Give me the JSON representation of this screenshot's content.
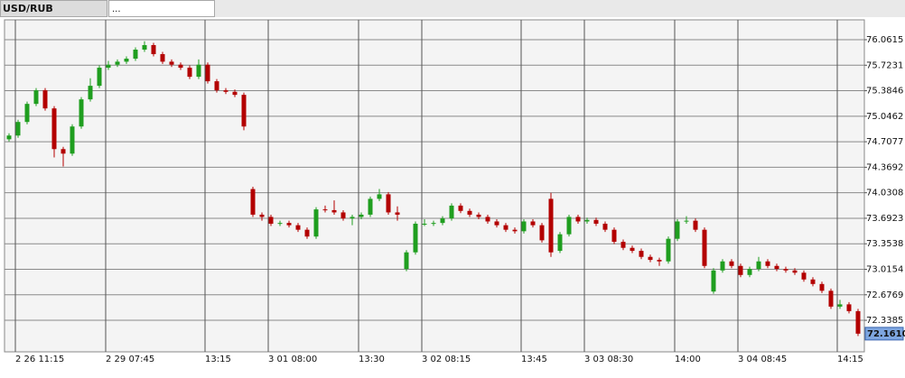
{
  "chart_data": {
    "type": "candlestick",
    "title": "USD/RUB",
    "tab_more": "...",
    "categories": [
      null,
      "2 26 11:15",
      null,
      null,
      null,
      null,
      null,
      null,
      null,
      null,
      null,
      "2 29 07:45",
      null,
      null,
      null,
      null,
      null,
      null,
      null,
      null,
      null,
      null,
      "13:15",
      null,
      null,
      null,
      null,
      null,
      null,
      "3 01 08:00",
      null,
      null,
      null,
      null,
      null,
      null,
      null,
      null,
      null,
      "13:30",
      null,
      null,
      null,
      null,
      null,
      null,
      "3 02 08:15",
      null,
      null,
      null,
      null,
      null,
      null,
      null,
      null,
      null,
      null,
      "13:45",
      null,
      null,
      null,
      null,
      null,
      null,
      "3 03 08:30",
      null,
      null,
      null,
      null,
      null,
      null,
      null,
      null,
      null,
      "14:00",
      null,
      null,
      null,
      null,
      null,
      null,
      "3 04 08:45",
      null,
      null,
      null,
      null,
      null,
      null,
      null,
      null,
      null,
      null,
      "14:15",
      null,
      null
    ],
    "open": [
      74.74,
      74.79,
      74.97,
      75.21,
      75.39,
      75.15,
      74.61,
      74.55,
      74.91,
      75.27,
      75.45,
      75.69,
      75.73,
      75.77,
      75.81,
      75.93,
      75.99,
      75.87,
      75.77,
      75.73,
      75.69,
      75.57,
      75.73,
      75.51,
      75.39,
      75.37,
      75.33,
      74.08,
      73.74,
      73.71,
      73.62,
      73.63,
      73.6,
      73.54,
      73.45,
      73.81,
      73.8,
      73.77,
      73.69,
      73.71,
      73.74,
      73.95,
      74.01,
      73.77,
      73.02,
      73.24,
      73.62,
      73.62,
      73.63,
      73.69,
      73.86,
      73.79,
      73.74,
      73.71,
      73.65,
      73.6,
      73.54,
      73.52,
      73.65,
      73.6,
      73.95,
      73.26,
      73.48,
      73.71,
      73.65,
      73.67,
      73.62,
      73.54,
      73.38,
      73.3,
      73.26,
      73.18,
      73.14,
      73.12,
      73.42,
      73.65,
      73.66,
      73.54,
      72.72,
      73.0,
      73.12,
      73.06,
      72.94,
      73.02,
      73.12,
      73.06,
      73.02,
      73.0,
      72.97,
      72.88,
      72.82,
      72.73,
      72.52,
      72.55,
      72.46
    ],
    "high": [
      74.82,
      75.0,
      75.24,
      75.42,
      75.42,
      75.18,
      74.64,
      74.94,
      75.3,
      75.55,
      75.72,
      75.78,
      75.8,
      75.84,
      75.96,
      76.04,
      76.02,
      75.9,
      75.8,
      75.76,
      75.72,
      75.8,
      75.76,
      75.54,
      75.42,
      75.4,
      75.36,
      74.11,
      73.77,
      73.74,
      73.66,
      73.66,
      73.63,
      73.57,
      73.84,
      73.86,
      73.93,
      73.8,
      73.74,
      73.77,
      73.98,
      74.08,
      74.04,
      73.85,
      73.27,
      73.65,
      73.68,
      73.66,
      73.72,
      73.89,
      73.89,
      73.82,
      73.77,
      73.74,
      73.68,
      73.63,
      73.57,
      73.68,
      73.68,
      73.63,
      74.03,
      73.51,
      73.74,
      73.74,
      73.7,
      73.7,
      73.65,
      73.57,
      73.41,
      73.33,
      73.29,
      73.21,
      73.17,
      73.45,
      73.68,
      73.72,
      73.69,
      73.57,
      73.03,
      73.15,
      73.15,
      73.09,
      73.05,
      73.18,
      73.15,
      73.09,
      73.05,
      73.03,
      73.0,
      72.91,
      72.85,
      72.76,
      72.61,
      72.58,
      72.49
    ],
    "low": [
      74.71,
      74.76,
      74.94,
      75.18,
      75.12,
      74.5,
      74.38,
      74.52,
      74.88,
      75.24,
      75.42,
      75.66,
      75.7,
      75.74,
      75.78,
      75.9,
      75.84,
      75.74,
      75.7,
      75.66,
      75.54,
      75.54,
      75.48,
      75.36,
      75.34,
      75.3,
      74.86,
      73.71,
      73.66,
      73.59,
      73.59,
      73.57,
      73.51,
      73.42,
      73.42,
      73.77,
      73.74,
      73.66,
      73.6,
      73.68,
      73.71,
      73.92,
      73.74,
      73.66,
      72.99,
      73.21,
      73.59,
      73.59,
      73.6,
      73.66,
      73.76,
      73.71,
      73.68,
      73.62,
      73.57,
      73.51,
      73.49,
      73.49,
      73.57,
      73.37,
      73.18,
      73.23,
      73.45,
      73.62,
      73.62,
      73.59,
      73.51,
      73.35,
      73.27,
      73.23,
      73.15,
      73.11,
      73.06,
      73.09,
      73.39,
      73.62,
      73.51,
      73.03,
      72.69,
      72.97,
      73.03,
      72.91,
      72.91,
      72.99,
      73.03,
      72.99,
      72.97,
      72.94,
      72.85,
      72.79,
      72.7,
      72.49,
      72.49,
      72.43,
      72.13
    ],
    "close": [
      74.79,
      74.97,
      75.21,
      75.39,
      75.15,
      74.61,
      74.55,
      74.91,
      75.27,
      75.45,
      75.69,
      75.73,
      75.77,
      75.81,
      75.93,
      75.99,
      75.87,
      75.77,
      75.73,
      75.69,
      75.57,
      75.73,
      75.51,
      75.39,
      75.37,
      75.33,
      74.91,
      73.74,
      73.71,
      73.62,
      73.63,
      73.6,
      73.54,
      73.45,
      73.81,
      73.8,
      73.77,
      73.69,
      73.71,
      73.74,
      73.95,
      74.01,
      73.77,
      73.74,
      73.24,
      73.62,
      73.62,
      73.63,
      73.69,
      73.86,
      73.79,
      73.74,
      73.71,
      73.65,
      73.6,
      73.54,
      73.52,
      73.65,
      73.6,
      73.4,
      73.24,
      73.48,
      73.71,
      73.65,
      73.67,
      73.62,
      73.54,
      73.38,
      73.3,
      73.26,
      73.18,
      73.14,
      73.12,
      73.42,
      73.65,
      73.66,
      73.54,
      73.06,
      73.0,
      73.12,
      73.06,
      72.94,
      73.02,
      73.12,
      73.06,
      73.02,
      73.0,
      72.97,
      72.88,
      72.82,
      72.73,
      72.52,
      72.55,
      72.46,
      72.161
    ],
    "up_color": "#1f9e1f",
    "down_color": "#b30000",
    "ylim": [
      71.92,
      76.325
    ],
    "yticks": [
      {
        "value": 76.0615,
        "label": "76.0615"
      },
      {
        "value": 75.7231,
        "label": "75.7231"
      },
      {
        "value": 75.3846,
        "label": "75.3846"
      },
      {
        "value": 75.0462,
        "label": "75.0462"
      },
      {
        "value": 74.7077,
        "label": "74.7077"
      },
      {
        "value": 74.3692,
        "label": "74.3692"
      },
      {
        "value": 74.0308,
        "label": "74.0308"
      },
      {
        "value": 73.6923,
        "label": "73.6923"
      },
      {
        "value": 73.3538,
        "label": "73.3538"
      },
      {
        "value": 73.0154,
        "label": "73.0154"
      },
      {
        "value": 72.6769,
        "label": "72.6769"
      },
      {
        "value": 72.3385,
        "label": "72.3385"
      }
    ],
    "last_price": {
      "value": 72.161,
      "label": "72.1610"
    },
    "grid": true
  }
}
